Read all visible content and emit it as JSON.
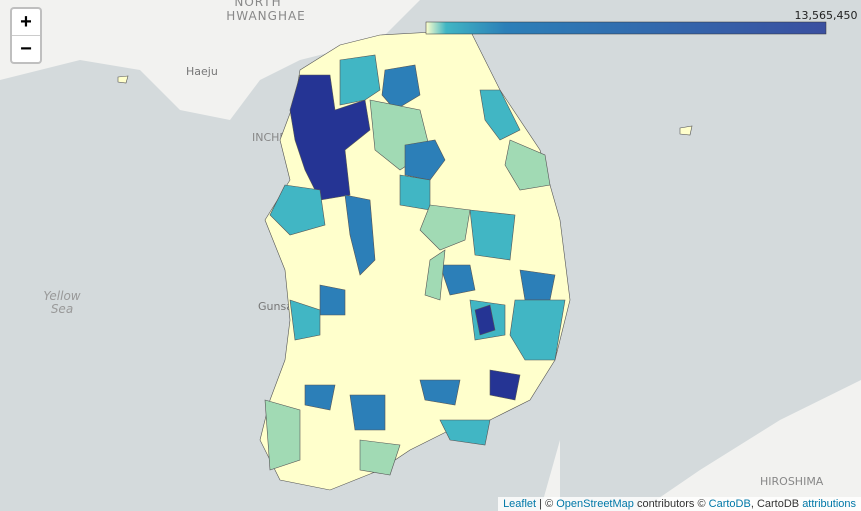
{
  "zoom": {
    "in": "+",
    "out": "−"
  },
  "place_labels": {
    "north": "NORTH",
    "hwanghae": "HWANGHAE",
    "haeju": "Haeju",
    "incheon": "INCHEON",
    "yellow": "Yellow",
    "sea": "Sea",
    "gunsan": "Gunsan",
    "hiroshima": "HIROSHIMA"
  },
  "legend": {
    "max_label": "13,565,450"
  },
  "attribution": {
    "parts": [
      "Leaflet",
      " | © ",
      "OpenStreetMap",
      " contributors © ",
      "CartoDB",
      ", CartoDB ",
      "attributions"
    ]
  }
}
